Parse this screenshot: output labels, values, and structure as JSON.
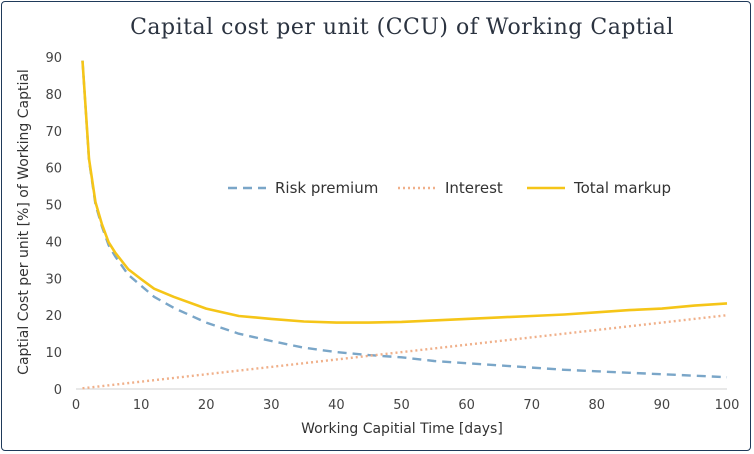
{
  "chart_data": {
    "type": "line",
    "title": "Capital cost per unit (CCU) of Working Captial",
    "xlabel": "Working Capitial Time [days]",
    "ylabel": "Captial Cost per unit [%] of Working Captial",
    "xlim": [
      0,
      100
    ],
    "ylim": [
      0,
      90
    ],
    "xticks": [
      0,
      10,
      20,
      30,
      40,
      50,
      60,
      70,
      80,
      90,
      100
    ],
    "yticks": [
      0,
      10,
      20,
      30,
      40,
      50,
      60,
      70,
      80,
      90
    ],
    "grid": false,
    "legend_position": "center-right",
    "series": [
      {
        "name": "Risk premium",
        "style": "dashed",
        "color": "#7aa6c8",
        "x": [
          1,
          2,
          3,
          4,
          5,
          6,
          8,
          10,
          12,
          15,
          20,
          25,
          30,
          35,
          40,
          45,
          50,
          55,
          60,
          65,
          70,
          75,
          80,
          85,
          90,
          95,
          100
        ],
        "y": [
          89,
          62,
          50,
          44,
          39,
          36,
          31,
          28,
          25,
          22,
          18,
          15,
          13,
          11.2,
          10,
          9.2,
          8.6,
          7.6,
          7,
          6.4,
          5.8,
          5.2,
          4.8,
          4.4,
          4,
          3.6,
          3.2
        ]
      },
      {
        "name": "Interest",
        "style": "dotted",
        "color": "#f0b08a",
        "x": [
          1,
          100
        ],
        "y": [
          0.2,
          20
        ]
      },
      {
        "name": "Total markup",
        "style": "solid",
        "color": "#f5c518",
        "x": [
          1,
          2,
          3,
          4,
          5,
          6,
          8,
          10,
          12,
          15,
          20,
          25,
          30,
          35,
          40,
          45,
          50,
          55,
          60,
          65,
          70,
          75,
          80,
          85,
          90,
          95,
          100
        ],
        "y": [
          89,
          62.4,
          50.6,
          44.6,
          39.8,
          37,
          32.5,
          29.8,
          27.2,
          25,
          21.8,
          19.8,
          19,
          18.3,
          18,
          18,
          18.2,
          18.6,
          19,
          19.4,
          19.8,
          20.2,
          20.8,
          21.4,
          21.8,
          22.6,
          23.2
        ]
      }
    ]
  }
}
